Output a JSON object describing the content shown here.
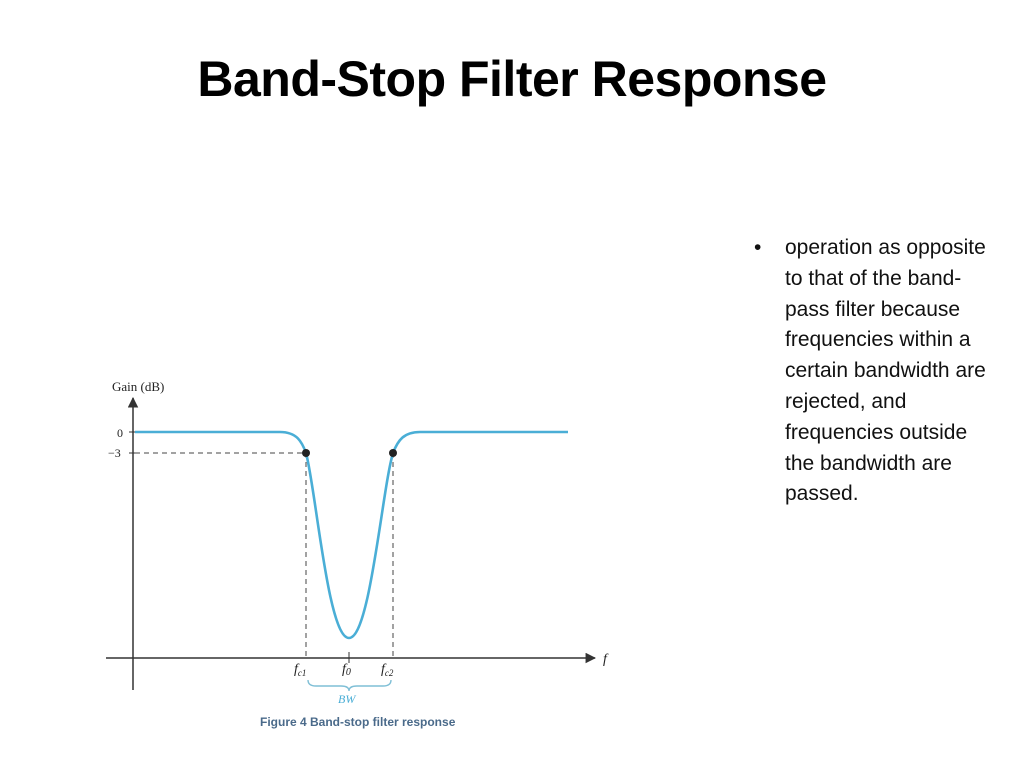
{
  "slide": {
    "title": "Band-Stop Filter Response",
    "bullets": [
      "operation as opposite to that of the band-pass filter because frequencies within a certain bandwidth are rejected, and frequencies outside the bandwidth are passed."
    ]
  },
  "figure": {
    "y_axis_label": "Gain (dB)",
    "x_axis_label": "f",
    "y_ticks": [
      "0",
      "−3"
    ],
    "x_ticks": [
      "f",
      "c1",
      "f",
      "0",
      "f",
      "c2"
    ],
    "bandwidth_label": "BW",
    "caption": "Figure 4 Band-stop filter response",
    "colors": {
      "curve": "#4aaed6",
      "bw_bracket": "#7fbfd6",
      "axis": "#333333",
      "caption": "#4a6a8a"
    }
  }
}
